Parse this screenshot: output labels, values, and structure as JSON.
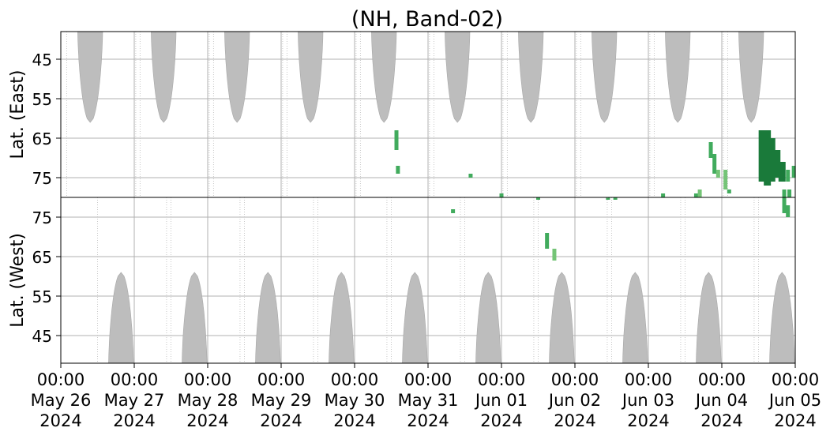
{
  "chart_data": {
    "type": "heatmap",
    "title": "(NH, Band-02)",
    "x_ticks": [
      {
        "time": "00:00",
        "day": "May 26",
        "year": "2024"
      },
      {
        "time": "00:00",
        "day": "May 27",
        "year": "2024"
      },
      {
        "time": "00:00",
        "day": "May 28",
        "year": "2024"
      },
      {
        "time": "00:00",
        "day": "May 29",
        "year": "2024"
      },
      {
        "time": "00:00",
        "day": "May 30",
        "year": "2024"
      },
      {
        "time": "00:00",
        "day": "May 31",
        "year": "2024"
      },
      {
        "time": "00:00",
        "day": "Jun 01",
        "year": "2024"
      },
      {
        "time": "00:00",
        "day": "Jun 02",
        "year": "2024"
      },
      {
        "time": "00:00",
        "day": "Jun 03",
        "year": "2024"
      },
      {
        "time": "00:00",
        "day": "Jun 04",
        "year": "2024"
      },
      {
        "time": "00:00",
        "day": "Jun 05",
        "year": "2024"
      }
    ],
    "colors": {
      "night": "#bdbdbd",
      "grid": "#b0b0b0",
      "light": "#74c476",
      "mid": "#41ab5d",
      "dark": "#1a7a3a"
    },
    "panels": [
      {
        "name": "east",
        "ylabel": "Lat. (East)",
        "yticks": [
          45,
          55,
          65,
          75
        ],
        "lat_range": [
          80,
          38
        ],
        "bulges": [
          {
            "center_day": 0.4,
            "width_days": 0.34,
            "lat_max": 61
          },
          {
            "center_day": 1.4,
            "width_days": 0.34,
            "lat_max": 61
          },
          {
            "center_day": 2.4,
            "width_days": 0.34,
            "lat_max": 61
          },
          {
            "center_day": 3.4,
            "width_days": 0.34,
            "lat_max": 61
          },
          {
            "center_day": 4.4,
            "width_days": 0.34,
            "lat_max": 61
          },
          {
            "center_day": 5.4,
            "width_days": 0.34,
            "lat_max": 61
          },
          {
            "center_day": 6.4,
            "width_days": 0.34,
            "lat_max": 61
          },
          {
            "center_day": 7.4,
            "width_days": 0.34,
            "lat_max": 61
          },
          {
            "center_day": 8.4,
            "width_days": 0.34,
            "lat_max": 61
          },
          {
            "center_day": 9.4,
            "width_days": 0.34,
            "lat_max": 61
          }
        ],
        "events": [
          {
            "day": 4.57,
            "lat_from": 63,
            "lat_to": 68,
            "level": "mid"
          },
          {
            "day": 4.59,
            "lat_from": 72,
            "lat_to": 74,
            "level": "mid"
          },
          {
            "day": 5.58,
            "lat_from": 74,
            "lat_to": 75,
            "level": "mid"
          },
          {
            "day": 6.0,
            "lat_from": 79,
            "lat_to": 80,
            "level": "mid"
          },
          {
            "day": 7.45,
            "lat_from": 80,
            "lat_to": 80,
            "level": "mid"
          },
          {
            "day": 7.55,
            "lat_from": 80,
            "lat_to": 80,
            "level": "mid"
          },
          {
            "day": 8.2,
            "lat_from": 79,
            "lat_to": 80,
            "level": "mid"
          },
          {
            "day": 8.65,
            "lat_from": 79,
            "lat_to": 80,
            "level": "mid"
          },
          {
            "day": 8.85,
            "lat_from": 66,
            "lat_to": 70,
            "level": "mid"
          },
          {
            "day": 8.9,
            "lat_from": 69,
            "lat_to": 74,
            "level": "mid"
          },
          {
            "day": 8.95,
            "lat_from": 73,
            "lat_to": 75,
            "level": "light"
          },
          {
            "day": 9.05,
            "lat_from": 73,
            "lat_to": 78,
            "level": "light"
          },
          {
            "day": 8.7,
            "lat_from": 78,
            "lat_to": 80,
            "level": "light"
          },
          {
            "day": 9.1,
            "lat_from": 78,
            "lat_to": 79,
            "level": "mid"
          },
          {
            "day": 9.55,
            "lat_from": 63,
            "lat_to": 76,
            "level": "dark"
          },
          {
            "day": 9.62,
            "lat_from": 63,
            "lat_to": 77,
            "level": "dark"
          },
          {
            "day": 9.68,
            "lat_from": 65,
            "lat_to": 76,
            "level": "dark"
          },
          {
            "day": 9.75,
            "lat_from": 68,
            "lat_to": 75,
            "level": "dark"
          },
          {
            "day": 9.82,
            "lat_from": 71,
            "lat_to": 76,
            "level": "dark"
          },
          {
            "day": 9.9,
            "lat_from": 73,
            "lat_to": 76,
            "level": "mid"
          },
          {
            "day": 9.98,
            "lat_from": 72,
            "lat_to": 75,
            "level": "mid"
          },
          {
            "day": 9.85,
            "lat_from": 78,
            "lat_to": 80,
            "level": "mid"
          },
          {
            "day": 9.92,
            "lat_from": 78,
            "lat_to": 80,
            "level": "mid"
          }
        ]
      },
      {
        "name": "west",
        "ylabel": "Lat. (West)",
        "yticks": [
          75,
          65,
          55,
          45
        ],
        "lat_range": [
          80,
          38
        ],
        "bulges": [
          {
            "center_day": 0.82,
            "width_days": 0.34,
            "lat_max": 61
          },
          {
            "center_day": 1.82,
            "width_days": 0.34,
            "lat_max": 61
          },
          {
            "center_day": 2.82,
            "width_days": 0.34,
            "lat_max": 61
          },
          {
            "center_day": 3.82,
            "width_days": 0.34,
            "lat_max": 61
          },
          {
            "center_day": 4.82,
            "width_days": 0.34,
            "lat_max": 61
          },
          {
            "center_day": 5.82,
            "width_days": 0.34,
            "lat_max": 61
          },
          {
            "center_day": 6.82,
            "width_days": 0.34,
            "lat_max": 61
          },
          {
            "center_day": 7.82,
            "width_days": 0.34,
            "lat_max": 61
          },
          {
            "center_day": 8.82,
            "width_days": 0.34,
            "lat_max": 61
          },
          {
            "center_day": 9.82,
            "width_days": 0.34,
            "lat_max": 61
          }
        ],
        "events": [
          {
            "day": 5.34,
            "lat_from": 76,
            "lat_to": 77,
            "level": "mid"
          },
          {
            "day": 6.5,
            "lat_from": 80,
            "lat_to": 80,
            "level": "mid"
          },
          {
            "day": 6.62,
            "lat_from": 67,
            "lat_to": 71,
            "level": "mid"
          },
          {
            "day": 6.72,
            "lat_from": 64,
            "lat_to": 67,
            "level": "light"
          },
          {
            "day": 6.5,
            "lat_from": 80,
            "lat_to": 80,
            "level": "mid"
          },
          {
            "day": 9.85,
            "lat_from": 76,
            "lat_to": 80,
            "level": "mid"
          },
          {
            "day": 9.9,
            "lat_from": 75,
            "lat_to": 78,
            "level": "mid"
          }
        ]
      }
    ]
  }
}
